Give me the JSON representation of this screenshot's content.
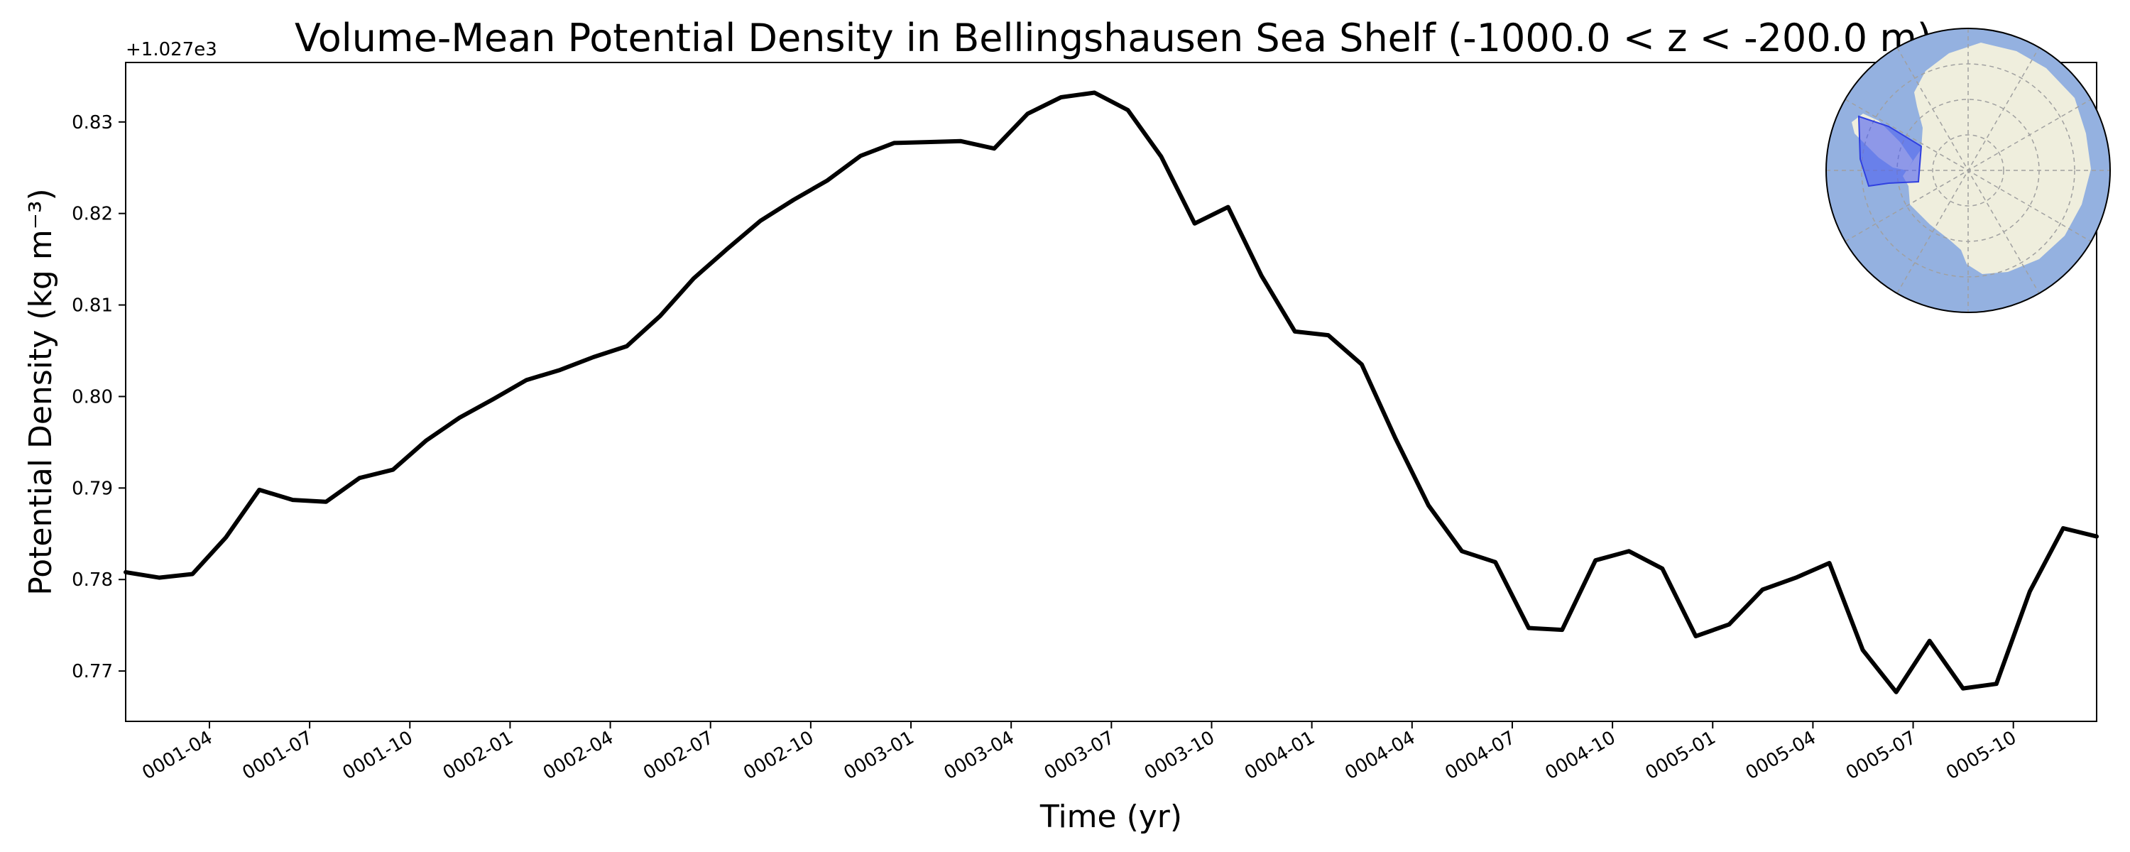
{
  "chart_data": {
    "type": "line",
    "title": "Volume-Mean Potential Density in Bellingshausen Sea Shelf (-1000.0 < z < -200.0 m)",
    "xlabel": "Time (yr)",
    "ylabel": "Potential Density (kg m⁻³)",
    "y_offset_label": "+1.027e3",
    "grid": false,
    "legend": "none",
    "line_color": "#000000",
    "ylim": [
      0.7645,
      0.8365
    ],
    "xlim": [
      "0001-01-16",
      "0005-12-16"
    ],
    "y_ticks": [
      0.77,
      0.78,
      0.79,
      0.8,
      0.81,
      0.82,
      0.83
    ],
    "y_tick_labels": [
      "0.77",
      "0.78",
      "0.79",
      "0.80",
      "0.81",
      "0.82",
      "0.83"
    ],
    "x_ticks": [
      "0001-04",
      "0001-07",
      "0001-10",
      "0002-01",
      "0002-04",
      "0002-07",
      "0002-10",
      "0003-01",
      "0003-04",
      "0003-07",
      "0003-10",
      "0004-01",
      "0004-04",
      "0004-07",
      "0004-10",
      "0005-01",
      "0005-04",
      "0005-07",
      "0005-10"
    ],
    "x": [
      "0001-01",
      "0001-02",
      "0001-03",
      "0001-04",
      "0001-05",
      "0001-06",
      "0001-07",
      "0001-08",
      "0001-09",
      "0001-10",
      "0001-11",
      "0001-12",
      "0002-01",
      "0002-02",
      "0002-03",
      "0002-04",
      "0002-05",
      "0002-06",
      "0002-07",
      "0002-08",
      "0002-09",
      "0002-10",
      "0002-11",
      "0002-12",
      "0003-01",
      "0003-02",
      "0003-03",
      "0003-04",
      "0003-05",
      "0003-06",
      "0003-07",
      "0003-08",
      "0003-09",
      "0003-10",
      "0003-11",
      "0003-12",
      "0004-01",
      "0004-02",
      "0004-03",
      "0004-04",
      "0004-05",
      "0004-06",
      "0004-07",
      "0004-08",
      "0004-09",
      "0004-10",
      "0004-11",
      "0004-12",
      "0005-01",
      "0005-02",
      "0005-03",
      "0005-04",
      "0005-05",
      "0005-06",
      "0005-07",
      "0005-08",
      "0005-09",
      "0005-10",
      "0005-11",
      "0005-12"
    ],
    "series": [
      {
        "values": [
          0.7808,
          0.7802,
          0.7806,
          0.7846,
          0.7898,
          0.7887,
          0.7885,
          0.7911,
          0.792,
          0.7952,
          0.7977,
          0.7997,
          0.8018,
          0.8029,
          0.8043,
          0.8055,
          0.8088,
          0.8129,
          0.8161,
          0.8192,
          0.8215,
          0.8236,
          0.8263,
          0.8277,
          0.8278,
          0.8279,
          0.8271,
          0.8309,
          0.8327,
          0.8332,
          0.8313,
          0.8262,
          0.8189,
          0.8207,
          0.8132,
          0.8071,
          0.8067,
          0.8035,
          0.7955,
          0.7881,
          0.7831,
          0.7819,
          0.7747,
          0.7745,
          0.7821,
          0.7831,
          0.7812,
          0.7738,
          0.7751,
          0.7789,
          0.7802,
          0.7818,
          0.7723,
          0.7677,
          0.7733,
          0.7681,
          0.7686,
          0.7787,
          0.7856,
          0.7847
        ]
      }
    ]
  },
  "inset_map": {
    "ocean_color": "#94b1e0",
    "land_color": "#efeedd",
    "region_color": "#4c5ff0",
    "graticule_color": "#a0a0a0"
  }
}
